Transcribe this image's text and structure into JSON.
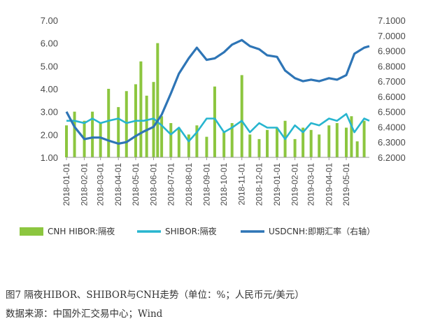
{
  "caption": "图7  隔夜HIBOR、SHIBOR与CNH走势（单位：%；人民币元/美元）",
  "source": "数据来源：中国外汇交易中心；Wind",
  "chart_data": {
    "type": "bar+line",
    "x_ticks": [
      "2018-01-01",
      "2018-02-01",
      "2018-03-01",
      "2018-04-01",
      "2018-05-01",
      "2018-06-01",
      "2018-07-01",
      "2018-08-01",
      "2018-09-01",
      "2018-10-01",
      "2018-11-01",
      "2018-12-01",
      "2019-01-01",
      "2019-02-01",
      "2019-03-01",
      "2019-04-01",
      "2019-05-01"
    ],
    "x_range": [
      "2018-01-01",
      "2019-06-10"
    ],
    "left_axis": {
      "ticks": [
        "7.00",
        "6.00",
        "5.00",
        "4.00",
        "3.00",
        "2.00",
        "1.00"
      ],
      "ylim": [
        1,
        7
      ]
    },
    "right_axis": {
      "ticks": [
        "7.1000",
        "7.0000",
        "6.9000",
        "6.8000",
        "6.7000",
        "6.6000",
        "6.5000",
        "6.4000",
        "6.3000",
        "6.2000"
      ],
      "ylim": [
        6.2,
        7.1
      ]
    },
    "legend": [
      {
        "name": "CNH HIBOR:隔夜",
        "color": "#8cc63f",
        "kind": "bar"
      },
      {
        "name": "SHIBOR:隔夜",
        "color": "#27b5cf",
        "kind": "line"
      },
      {
        "name": "USDCNH:即期汇率（右轴）",
        "color": "#2e75b6",
        "kind": "line"
      }
    ],
    "series": [
      {
        "name": "CNH HIBOR:隔夜",
        "type": "bar",
        "axis": "left",
        "x": [
          "2018-01-01",
          "2018-01-15",
          "2018-02-01",
          "2018-02-15",
          "2018-03-01",
          "2018-03-15",
          "2018-04-01",
          "2018-04-15",
          "2018-05-01",
          "2018-05-10",
          "2018-05-20",
          "2018-06-01",
          "2018-06-08",
          "2018-06-15",
          "2018-07-01",
          "2018-07-15",
          "2018-08-01",
          "2018-08-15",
          "2018-09-01",
          "2018-09-15",
          "2018-10-01",
          "2018-10-15",
          "2018-11-01",
          "2018-11-15",
          "2018-12-01",
          "2018-12-15",
          "2019-01-01",
          "2019-01-15",
          "2019-02-01",
          "2019-02-15",
          "2019-03-01",
          "2019-03-15",
          "2019-04-01",
          "2019-04-15",
          "2019-05-01",
          "2019-05-10",
          "2019-05-20",
          "2019-06-01"
        ],
        "values": [
          2.4,
          3.0,
          2.6,
          3.0,
          2.5,
          4.0,
          3.2,
          3.9,
          4.2,
          5.2,
          3.7,
          4.3,
          6.0,
          2.8,
          2.5,
          2.3,
          2.0,
          2.4,
          1.9,
          4.1,
          2.1,
          2.5,
          4.6,
          2.0,
          1.8,
          2.2,
          2.3,
          2.6,
          1.8,
          2.3,
          2.2,
          2.0,
          2.4,
          2.5,
          2.3,
          2.8,
          1.7,
          2.6
        ]
      },
      {
        "name": "SHIBOR:隔夜",
        "type": "line",
        "axis": "left",
        "x": [
          "2018-01-01",
          "2018-01-15",
          "2018-02-01",
          "2018-02-15",
          "2018-03-01",
          "2018-03-15",
          "2018-04-01",
          "2018-04-15",
          "2018-05-01",
          "2018-05-15",
          "2018-06-01",
          "2018-06-15",
          "2018-07-01",
          "2018-07-15",
          "2018-08-01",
          "2018-08-15",
          "2018-09-01",
          "2018-09-15",
          "2018-10-01",
          "2018-10-15",
          "2018-11-01",
          "2018-11-15",
          "2018-12-01",
          "2018-12-15",
          "2019-01-01",
          "2019-01-15",
          "2019-02-01",
          "2019-02-15",
          "2019-03-01",
          "2019-03-15",
          "2019-04-01",
          "2019-04-15",
          "2019-05-01",
          "2019-05-15",
          "2019-06-01",
          "2019-06-10"
        ],
        "values": [
          2.6,
          2.6,
          2.5,
          2.7,
          2.5,
          2.6,
          2.7,
          2.5,
          2.6,
          2.6,
          2.7,
          2.4,
          2.0,
          2.3,
          1.7,
          2.1,
          2.7,
          2.7,
          2.1,
          2.3,
          2.6,
          2.1,
          2.5,
          2.3,
          2.3,
          1.8,
          2.4,
          2.1,
          2.5,
          2.4,
          2.7,
          2.6,
          2.9,
          2.1,
          2.7,
          2.6
        ]
      },
      {
        "name": "USDCNH:即期汇率（右轴）",
        "type": "line",
        "axis": "right",
        "x": [
          "2018-01-01",
          "2018-01-15",
          "2018-02-01",
          "2018-02-15",
          "2018-03-01",
          "2018-03-15",
          "2018-04-01",
          "2018-04-15",
          "2018-05-01",
          "2018-05-15",
          "2018-06-01",
          "2018-06-15",
          "2018-07-01",
          "2018-07-15",
          "2018-08-01",
          "2018-08-15",
          "2018-09-01",
          "2018-09-15",
          "2018-10-01",
          "2018-10-15",
          "2018-11-01",
          "2018-11-15",
          "2018-12-01",
          "2018-12-15",
          "2019-01-01",
          "2019-01-15",
          "2019-02-01",
          "2019-02-15",
          "2019-03-01",
          "2019-03-15",
          "2019-04-01",
          "2019-04-15",
          "2019-05-01",
          "2019-05-15",
          "2019-06-01",
          "2019-06-10"
        ],
        "values": [
          6.5,
          6.4,
          6.32,
          6.33,
          6.33,
          6.31,
          6.29,
          6.3,
          6.34,
          6.37,
          6.4,
          6.48,
          6.62,
          6.75,
          6.85,
          6.92,
          6.84,
          6.85,
          6.89,
          6.94,
          6.97,
          6.93,
          6.91,
          6.87,
          6.86,
          6.77,
          6.72,
          6.7,
          6.71,
          6.7,
          6.72,
          6.71,
          6.74,
          6.88,
          6.92,
          6.93
        ]
      }
    ]
  }
}
